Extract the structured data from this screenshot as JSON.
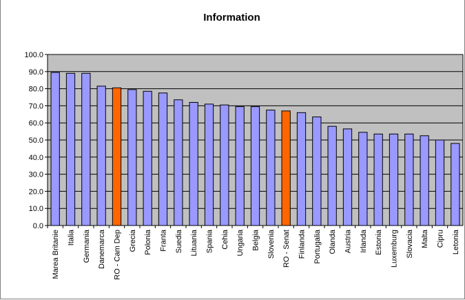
{
  "chart_data": {
    "type": "bar",
    "title": "Information",
    "xlabel": "",
    "ylabel": "",
    "ylim": [
      0,
      100
    ],
    "yticks": [
      "0.0",
      "10.0",
      "20.0",
      "30.0",
      "40.0",
      "50.0",
      "60.0",
      "70.0",
      "80.0",
      "90.0",
      "100.0"
    ],
    "grid": true,
    "legend": "none",
    "categories": [
      "Marea Britanie",
      "Italia",
      "Germania",
      "Danemarca",
      "RO - Cam Dep",
      "Grecia",
      "Polonia",
      "Franta",
      "Suedia",
      "Lituania",
      "Spania",
      "Cehia",
      "Ungaria",
      "Belgia",
      "Slovenia",
      "RO - Senat",
      "Finlanda",
      "Portugalia",
      "Olanda",
      "Austria",
      "Irlanda",
      "Estonia",
      "Luxemburg",
      "Slovacia",
      "Malta",
      "Cipru",
      "Letonia"
    ],
    "values": [
      89.5,
      89.0,
      89.0,
      81.5,
      80.5,
      79.5,
      78.5,
      77.5,
      73.5,
      72.0,
      71.0,
      70.5,
      69.5,
      69.5,
      67.5,
      67.0,
      66.0,
      63.5,
      58.0,
      56.5,
      54.5,
      53.5,
      53.5,
      53.5,
      52.5,
      50.0,
      48.0
    ],
    "highlight": [
      "RO - Cam Dep",
      "RO - Senat"
    ],
    "colors": {
      "bar": "#9999ff",
      "highlight_bar": "#ff6600",
      "bar_stroke": "#000000",
      "plot_background": "#c0c0c0",
      "gridline": "#000000"
    }
  }
}
